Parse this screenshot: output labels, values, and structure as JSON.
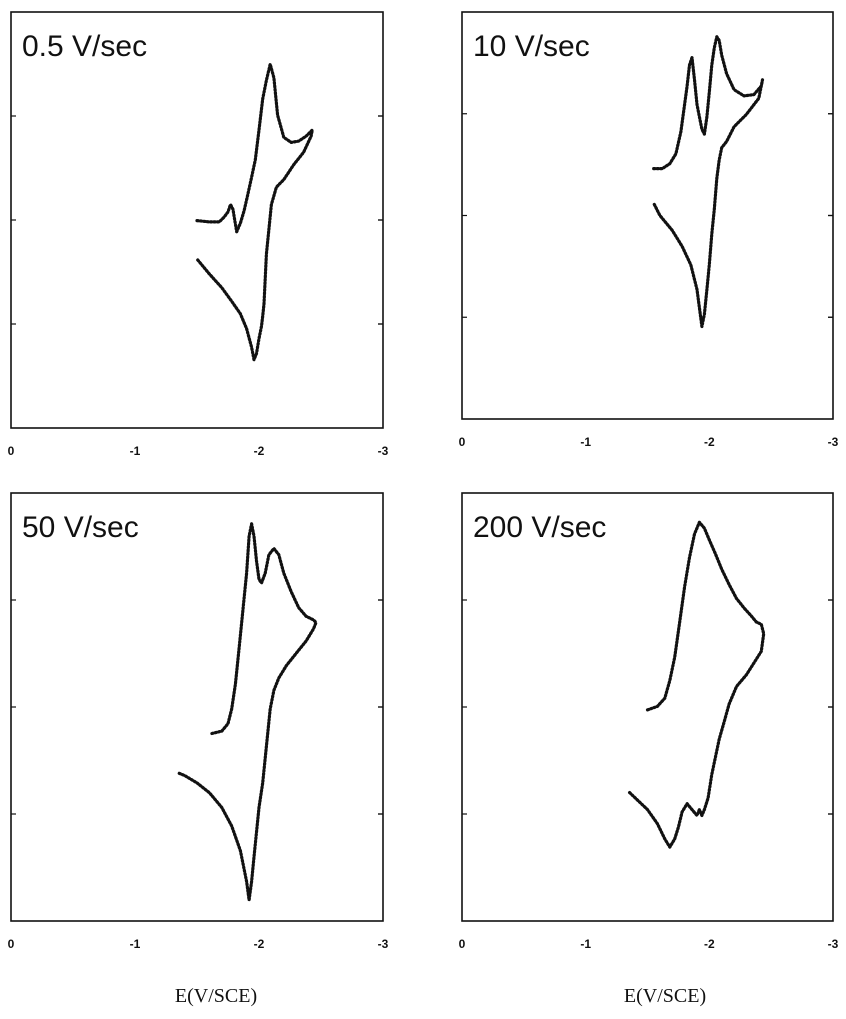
{
  "chart_data": [
    {
      "type": "line",
      "label": "0.5 V/sec",
      "xlim": [
        0,
        -3
      ],
      "xticks": [
        "0",
        "-1",
        "-2",
        "-3"
      ],
      "series": [
        {
          "x": [
            -1.5,
            -1.6,
            -1.68,
            -1.72,
            -1.75,
            -1.77,
            -1.79,
            -1.8,
            -1.82,
            -1.85,
            -1.88,
            -1.91,
            -1.94,
            -1.97,
            -2.0,
            -2.03,
            -2.06,
            -2.09,
            -2.12,
            -2.15,
            -2.2,
            -2.26,
            -2.32,
            -2.38,
            -2.43,
            -2.42,
            -2.36,
            -2.28,
            -2.2,
            -2.14,
            -2.1,
            -2.08,
            -2.06,
            -2.05,
            -2.04,
            -2.03,
            -2.02,
            -2.0,
            -1.98,
            -1.96,
            -1.94,
            -1.9,
            -1.85,
            -1.78,
            -1.7,
            -1.6,
            -1.5
          ],
          "y": [
            0.57,
            0.56,
            0.56,
            0.6,
            0.64,
            0.7,
            0.66,
            0.6,
            0.48,
            0.55,
            0.65,
            0.78,
            0.92,
            1.06,
            1.3,
            1.55,
            1.7,
            1.83,
            1.72,
            1.42,
            1.24,
            1.2,
            1.21,
            1.25,
            1.3,
            1.25,
            1.12,
            1.02,
            0.9,
            0.84,
            0.7,
            0.5,
            0.3,
            0.1,
            -0.1,
            -0.2,
            -0.28,
            -0.38,
            -0.5,
            -0.55,
            -0.45,
            -0.3,
            -0.18,
            -0.08,
            0.03,
            0.14,
            0.26
          ]
        }
      ]
    },
    {
      "type": "line",
      "label": "10 V/sec",
      "xlim": [
        0,
        -3
      ],
      "xticks": [
        "0",
        "-1",
        "-2",
        "-3"
      ],
      "series": [
        {
          "x": [
            -1.55,
            -1.62,
            -1.68,
            -1.73,
            -1.77,
            -1.8,
            -1.82,
            -1.84,
            -1.86,
            -1.88,
            -1.9,
            -1.92,
            -1.94,
            -1.96,
            -1.98,
            -2.0,
            -2.02,
            -2.04,
            -2.06,
            -2.08,
            -2.1,
            -2.14,
            -2.2,
            -2.28,
            -2.36,
            -2.42,
            -2.43,
            -2.4,
            -2.3,
            -2.2,
            -2.14,
            -2.1,
            -2.08,
            -2.06,
            -2.04,
            -2.02,
            -2.0,
            -1.98,
            -1.96,
            -1.94,
            -1.9,
            -1.85,
            -1.78,
            -1.7,
            -1.6,
            -1.55
          ],
          "y": [
            0.78,
            0.78,
            0.82,
            0.9,
            1.08,
            1.3,
            1.45,
            1.62,
            1.68,
            1.5,
            1.3,
            1.2,
            1.1,
            1.06,
            1.2,
            1.4,
            1.62,
            1.76,
            1.85,
            1.82,
            1.7,
            1.55,
            1.42,
            1.37,
            1.38,
            1.45,
            1.5,
            1.35,
            1.22,
            1.12,
            1.0,
            0.95,
            0.85,
            0.7,
            0.45,
            0.25,
            0.0,
            -0.2,
            -0.4,
            -0.5,
            -0.2,
            0.0,
            0.15,
            0.28,
            0.4,
            0.5
          ]
        }
      ]
    },
    {
      "type": "line",
      "label": "50 V/sec",
      "xlim": [
        0,
        -3
      ],
      "xticks": [
        "0",
        "-1",
        "-2",
        "-3"
      ],
      "series": [
        {
          "x": [
            -1.62,
            -1.7,
            -1.75,
            -1.78,
            -1.81,
            -1.84,
            -1.87,
            -1.9,
            -1.92,
            -1.94,
            -1.96,
            -1.98,
            -2.0,
            -2.02,
            -2.05,
            -2.08,
            -2.12,
            -2.16,
            -2.2,
            -2.26,
            -2.32,
            -2.38,
            -2.44,
            -2.46,
            -2.44,
            -2.38,
            -2.3,
            -2.22,
            -2.16,
            -2.12,
            -2.09,
            -2.07,
            -2.05,
            -2.03,
            -2.0,
            -1.98,
            -1.96,
            -1.94,
            -1.92,
            -1.9,
            -1.85,
            -1.78,
            -1.7,
            -1.6,
            -1.5,
            -1.4,
            -1.35
          ],
          "y": [
            0.6,
            0.62,
            0.68,
            0.8,
            1.0,
            1.3,
            1.6,
            1.9,
            2.2,
            2.3,
            2.2,
            2.0,
            1.85,
            1.82,
            1.9,
            2.05,
            2.1,
            2.05,
            1.9,
            1.75,
            1.62,
            1.55,
            1.52,
            1.5,
            1.45,
            1.35,
            1.25,
            1.15,
            1.05,
            0.95,
            0.8,
            0.6,
            0.4,
            0.2,
            0.0,
            -0.2,
            -0.4,
            -0.6,
            -0.75,
            -0.6,
            -0.35,
            -0.15,
            0.0,
            0.12,
            0.2,
            0.26,
            0.28
          ]
        }
      ]
    },
    {
      "type": "line",
      "label": "200 V/sec",
      "xlim": [
        0,
        -3
      ],
      "xticks": [
        "0",
        "-1",
        "-2",
        "-3"
      ],
      "series": [
        {
          "x": [
            -1.5,
            -1.58,
            -1.64,
            -1.68,
            -1.72,
            -1.76,
            -1.8,
            -1.84,
            -1.88,
            -1.92,
            -1.96,
            -2.0,
            -2.05,
            -2.1,
            -2.16,
            -2.22,
            -2.28,
            -2.34,
            -2.38,
            -2.42,
            -2.44,
            -2.42,
            -2.36,
            -2.3,
            -2.22,
            -2.16,
            -2.12,
            -2.08,
            -2.05,
            -2.02,
            -1.99,
            -1.96,
            -1.94,
            -1.92,
            -1.9,
            -1.86,
            -1.82,
            -1.78,
            -1.75,
            -1.72,
            -1.68,
            -1.64,
            -1.58,
            -1.5,
            -1.42,
            -1.35
          ],
          "y": [
            0.55,
            0.58,
            0.65,
            0.8,
            1.0,
            1.3,
            1.6,
            1.85,
            2.05,
            2.15,
            2.1,
            2.0,
            1.88,
            1.75,
            1.62,
            1.5,
            1.42,
            1.35,
            1.3,
            1.28,
            1.2,
            1.05,
            0.95,
            0.85,
            0.75,
            0.6,
            0.45,
            0.3,
            0.15,
            0.0,
            -0.2,
            -0.3,
            -0.35,
            -0.3,
            -0.35,
            -0.3,
            -0.25,
            -0.32,
            -0.45,
            -0.55,
            -0.62,
            -0.55,
            -0.42,
            -0.3,
            -0.22,
            -0.15
          ]
        }
      ]
    }
  ],
  "xaxis_caption": [
    "E(V/SCE)",
    "E(V/SCE)"
  ]
}
